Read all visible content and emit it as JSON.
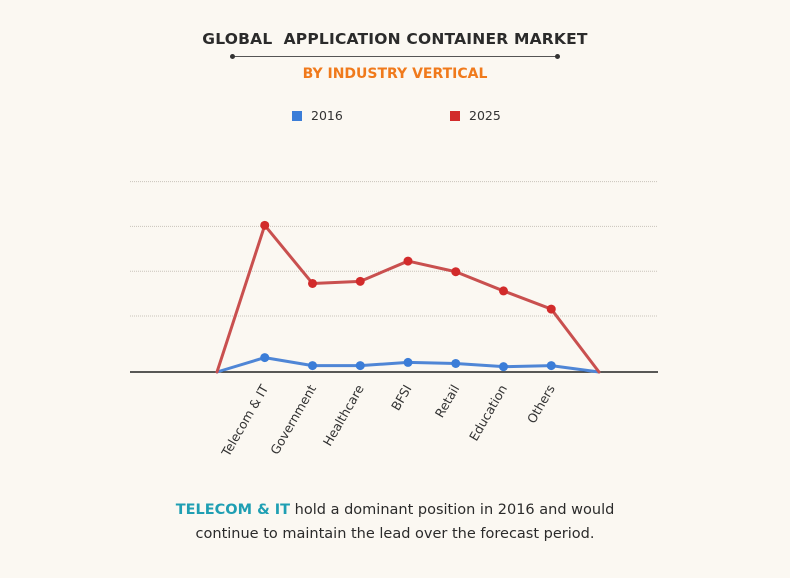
{
  "chart_data": {
    "type": "line",
    "title": "GLOBAL  APPLICATION CONTAINER MARKET",
    "subtitle": "BY INDUSTRY VERTICAL",
    "categories": [
      "Telecom & IT",
      "Government",
      "Healthcare",
      "BFSI",
      "Retail",
      "Education",
      "Others"
    ],
    "series": [
      {
        "name": "2016",
        "color": "#3b7dd8",
        "values": [
          0.27,
          0.12,
          0.12,
          0.18,
          0.16,
          0.1,
          0.12
        ],
        "start": 0,
        "end": 0
      },
      {
        "name": "2025",
        "color": "#d22b2b",
        "values": [
          2.75,
          1.66,
          1.7,
          2.08,
          1.88,
          1.52,
          1.18
        ],
        "start": 0,
        "end": 0
      }
    ],
    "ylim": [
      0,
      4.2
    ],
    "grid": true,
    "legend": "top-center"
  },
  "footnote": {
    "highlight": "TELECOM & IT",
    "text_line1": " hold a dominant position in 2016 and would",
    "text_line2": "continue to maintain the lead over the forecast period."
  }
}
